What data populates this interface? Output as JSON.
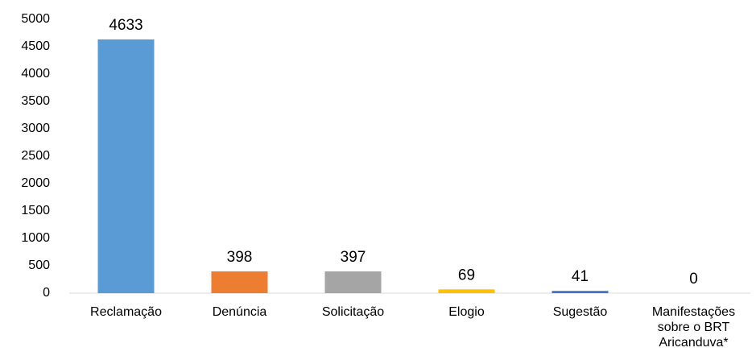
{
  "chart_data": {
    "type": "bar",
    "categories": [
      "Reclamação",
      "Denúncia",
      "Solicitação",
      "Elogio",
      "Sugestão",
      "Manifestações sobre o BRT Aricanduva*"
    ],
    "values": [
      4633,
      398,
      397,
      69,
      41,
      0
    ],
    "colors": [
      "#5b9bd5",
      "#ed7d31",
      "#a5a5a5",
      "#ffc000",
      "#4472c4",
      "#70ad47"
    ],
    "ylim": [
      0,
      5000
    ],
    "yticks": [
      0,
      500,
      1000,
      1500,
      2000,
      2500,
      3000,
      3500,
      4000,
      4500,
      5000
    ],
    "grid": false
  }
}
